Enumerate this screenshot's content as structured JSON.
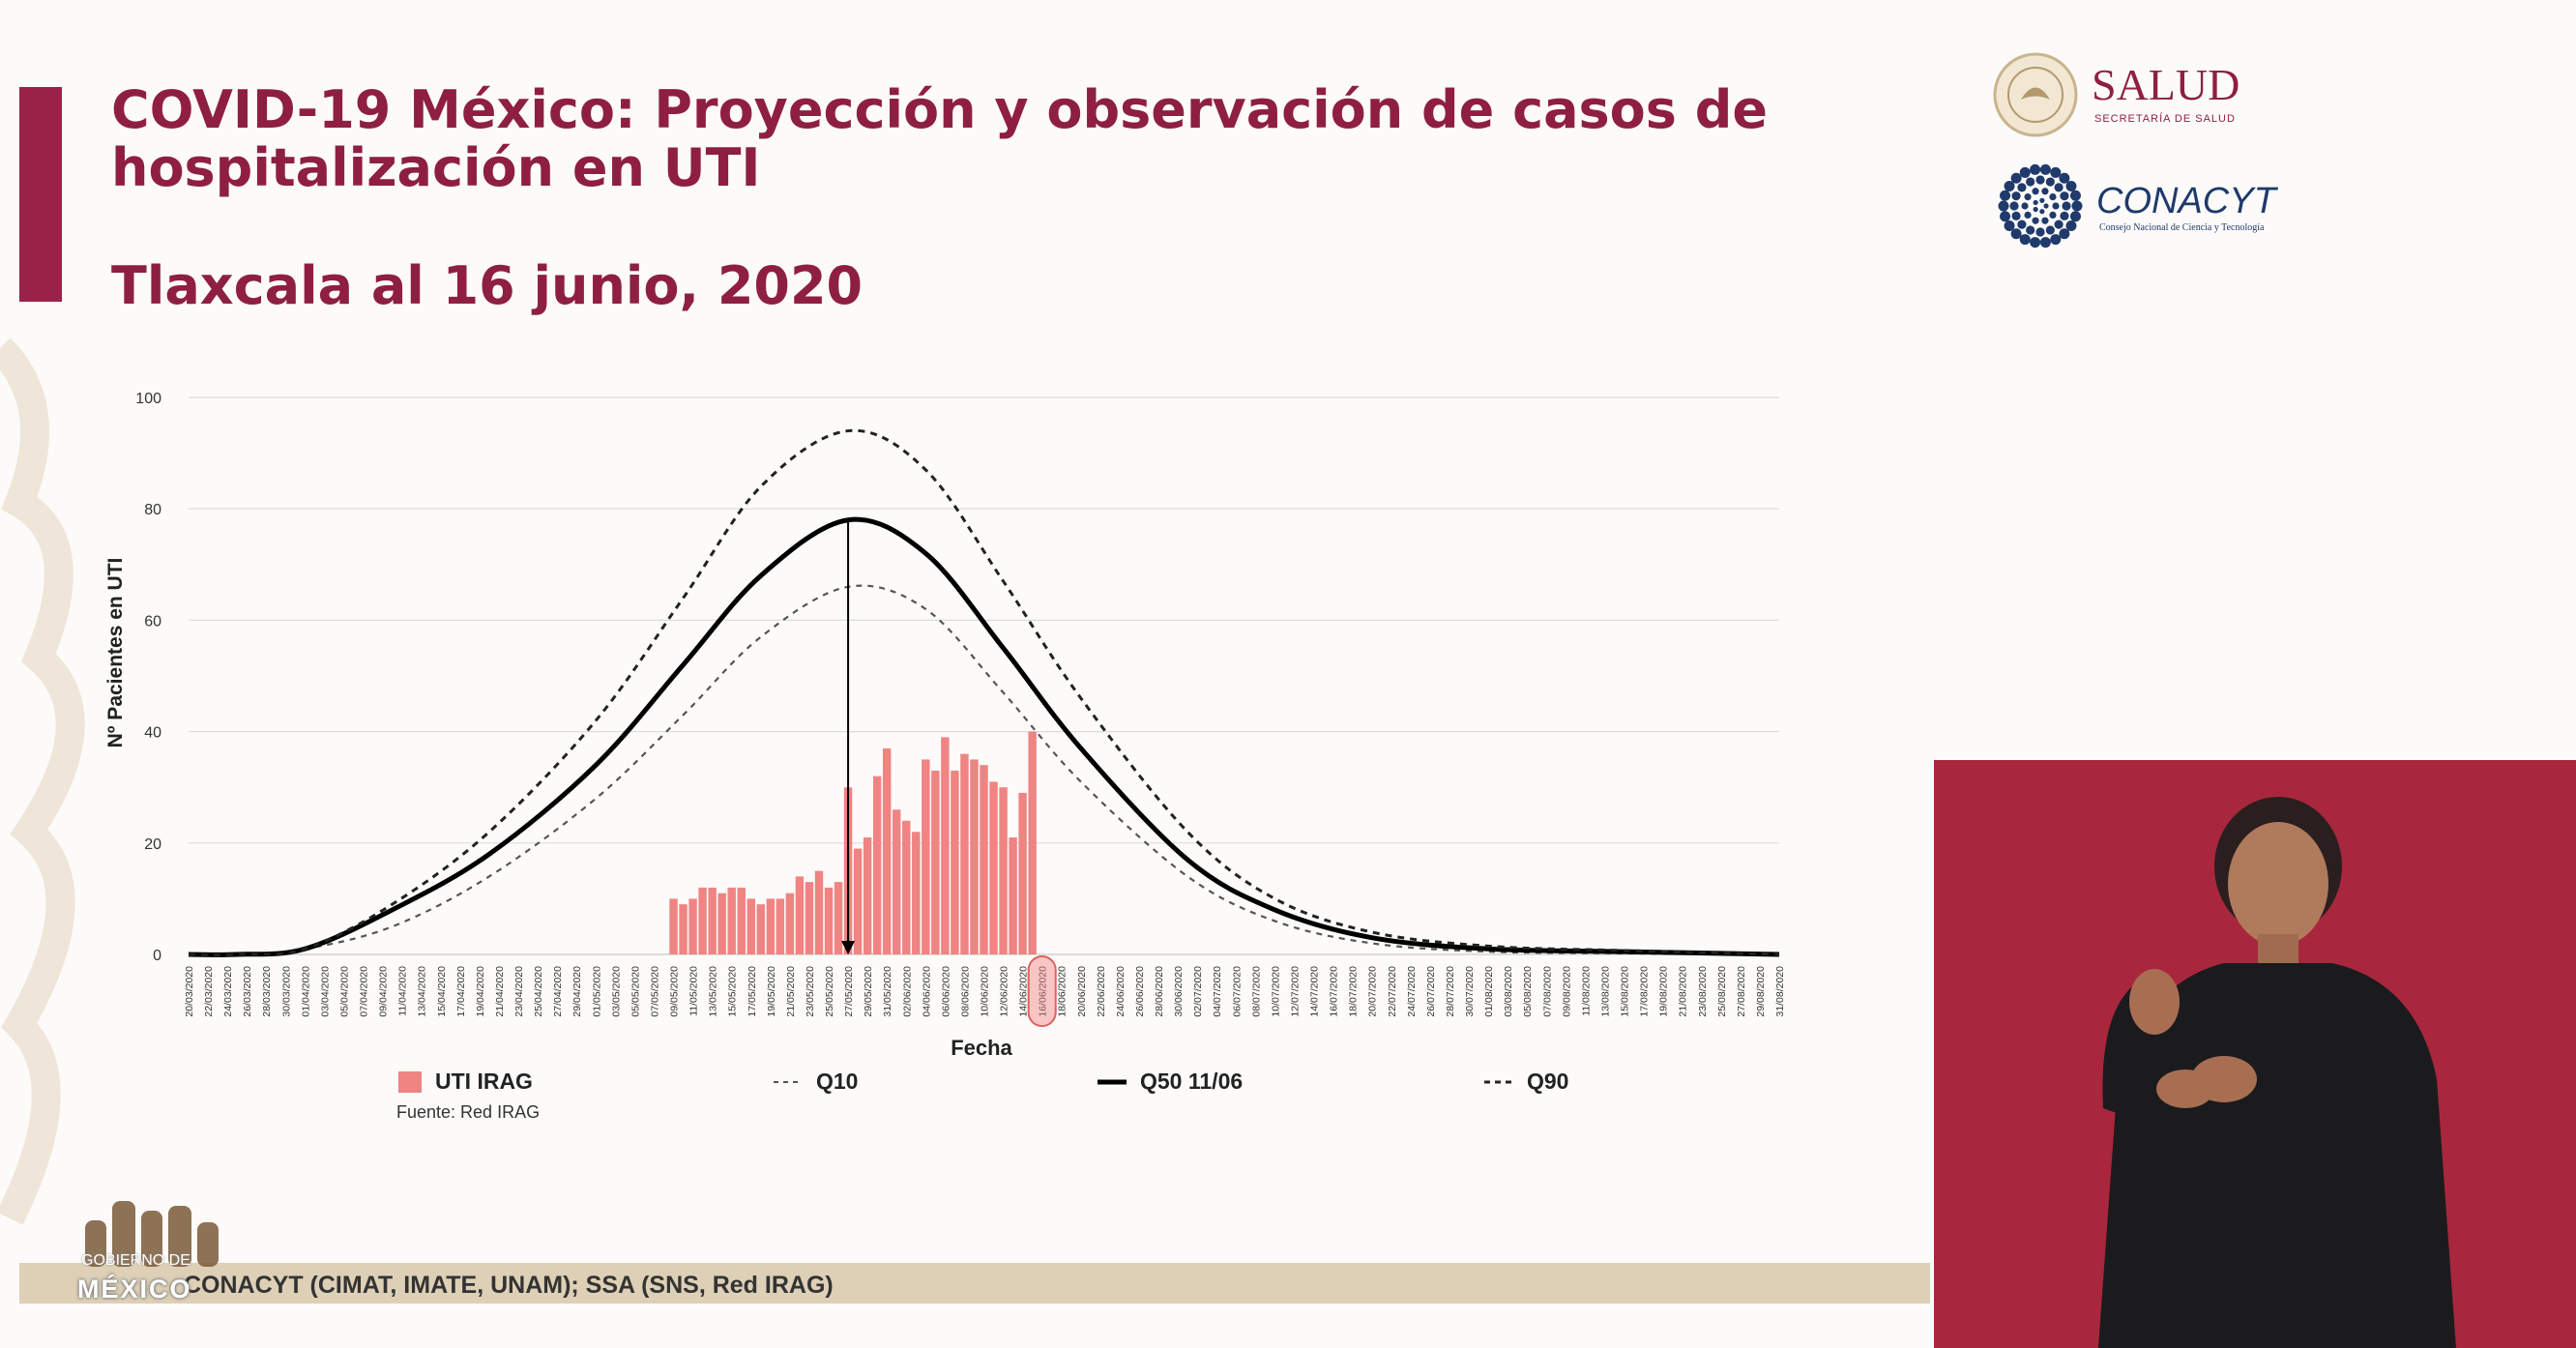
{
  "slide": {
    "title_line1": "COVID-19 México: Proyección y observación de casos de",
    "title_line2": "hospitalización en UTI",
    "subtitle": "Tlaxcala al 16 junio, 2020",
    "footer": "CONACYT (CIMAT, IMATE, UNAM);   SSA (SNS, Red IRAG)",
    "source_note": "Fuente: Red IRAG"
  },
  "logos": {
    "salud_name": "SALUD",
    "salud_sub": "SECRETARÍA DE SALUD",
    "conacyt_name": "CONACYT",
    "conacyt_sub": "Consejo Nacional de Ciencia y Tecnología",
    "gov_line1": "GOBIERNO DE",
    "gov_line2": "MÉXICO"
  },
  "legend": {
    "bars": "UTI IRAG",
    "q10": "Q10",
    "q50": "Q50 11/06",
    "q90": "Q90"
  },
  "colors": {
    "title": "#8e1f43",
    "accent_bar": "#9b2247",
    "bar_fill": "#ef8482",
    "curve": "#000000",
    "grid": "#dcdcdc",
    "footer_band": "#ddd0b6",
    "interpreter_bg": "#a8273d"
  },
  "chart_data": {
    "type": "bar",
    "title": "",
    "xlabel": "Fecha",
    "ylabel": "Nº Pacientes en UTI",
    "ylim": [
      0,
      100
    ],
    "yticks": [
      0,
      20,
      40,
      60,
      80,
      100
    ],
    "grid": true,
    "x_start": "20/03/2020",
    "x_end": "31/08/2020",
    "x_tick_labels": [
      "20/03/2020",
      "22/03/2020",
      "24/03/2020",
      "26/03/2020",
      "28/03/2020",
      "30/03/2020",
      "01/04/2020",
      "03/04/2020",
      "05/04/2020",
      "07/04/2020",
      "09/04/2020",
      "11/04/2020",
      "13/04/2020",
      "15/04/2020",
      "17/04/2020",
      "19/04/2020",
      "21/04/2020",
      "23/04/2020",
      "25/04/2020",
      "27/04/2020",
      "29/04/2020",
      "01/05/2020",
      "03/05/2020",
      "05/05/2020",
      "07/05/2020",
      "09/05/2020",
      "11/05/2020",
      "13/05/2020",
      "15/05/2020",
      "17/05/2020",
      "19/05/2020",
      "21/05/2020",
      "23/05/2020",
      "25/05/2020",
      "27/05/2020",
      "29/05/2020",
      "31/05/2020",
      "02/06/2020",
      "04/06/2020",
      "06/06/2020",
      "08/06/2020",
      "10/06/2020",
      "12/06/2020",
      "14/06/2020",
      "16/06/2020",
      "18/06/2020",
      "20/06/2020",
      "22/06/2020",
      "24/06/2020",
      "26/06/2020",
      "28/06/2020",
      "30/06/2020",
      "02/07/2020",
      "04/07/2020",
      "06/07/2020",
      "08/07/2020",
      "10/07/2020",
      "12/07/2020",
      "14/07/2020",
      "16/07/2020",
      "18/07/2020",
      "20/07/2020",
      "22/07/2020",
      "24/07/2020",
      "26/07/2020",
      "28/07/2020",
      "30/07/2020",
      "01/08/2020",
      "03/08/2020",
      "05/08/2020",
      "07/08/2020",
      "09/08/2020",
      "11/08/2020",
      "13/08/2020",
      "15/08/2020",
      "17/08/2020",
      "19/08/2020",
      "21/08/2020",
      "23/08/2020",
      "25/08/2020",
      "27/08/2020",
      "29/08/2020",
      "31/08/2020"
    ],
    "bars": {
      "name": "UTI IRAG",
      "start": "09/05/2020",
      "values": [
        10,
        9,
        10,
        12,
        12,
        11,
        12,
        12,
        10,
        9,
        10,
        10,
        11,
        14,
        13,
        15,
        12,
        13,
        30,
        19,
        21,
        32,
        37,
        26,
        24,
        22,
        35,
        33,
        39,
        33,
        36,
        35,
        34,
        31,
        30,
        21,
        29,
        40
      ]
    },
    "peak_marker": {
      "date": "27/05/2020",
      "value": 78
    },
    "highlight_date": "16/06/2020",
    "series": [
      {
        "name": "Q10",
        "style": "dashed-thin",
        "points": [
          [
            "20/03/2020",
            0
          ],
          [
            "25/03/2020",
            0
          ],
          [
            "01/04/2020",
            1
          ],
          [
            "10/04/2020",
            5
          ],
          [
            "20/04/2020",
            14
          ],
          [
            "01/05/2020",
            28
          ],
          [
            "10/05/2020",
            43
          ],
          [
            "18/05/2020",
            57
          ],
          [
            "27/05/2020",
            66
          ],
          [
            "04/06/2020",
            62
          ],
          [
            "12/06/2020",
            47
          ],
          [
            "20/06/2020",
            31
          ],
          [
            "01/07/2020",
            14
          ],
          [
            "10/07/2020",
            6
          ],
          [
            "20/07/2020",
            2
          ],
          [
            "01/08/2020",
            0.5
          ],
          [
            "15/08/2020",
            0.2
          ],
          [
            "31/08/2020",
            0
          ]
        ]
      },
      {
        "name": "Q50 11/06",
        "style": "solid-thick",
        "points": [
          [
            "20/03/2020",
            0
          ],
          [
            "25/03/2020",
            0
          ],
          [
            "01/04/2020",
            1
          ],
          [
            "10/04/2020",
            8
          ],
          [
            "20/04/2020",
            18
          ],
          [
            "01/05/2020",
            34
          ],
          [
            "10/05/2020",
            52
          ],
          [
            "18/05/2020",
            68
          ],
          [
            "27/05/2020",
            78
          ],
          [
            "04/06/2020",
            72
          ],
          [
            "12/06/2020",
            55
          ],
          [
            "20/06/2020",
            37
          ],
          [
            "01/07/2020",
            17
          ],
          [
            "10/07/2020",
            8
          ],
          [
            "20/07/2020",
            3
          ],
          [
            "01/08/2020",
            1
          ],
          [
            "15/08/2020",
            0.5
          ],
          [
            "31/08/2020",
            0
          ]
        ]
      },
      {
        "name": "Q90",
        "style": "dashed-medium",
        "points": [
          [
            "20/03/2020",
            0
          ],
          [
            "25/03/2020",
            0
          ],
          [
            "01/04/2020",
            1
          ],
          [
            "10/04/2020",
            9
          ],
          [
            "20/04/2020",
            22
          ],
          [
            "01/05/2020",
            42
          ],
          [
            "10/05/2020",
            64
          ],
          [
            "18/05/2020",
            84
          ],
          [
            "27/05/2020",
            94
          ],
          [
            "04/06/2020",
            87
          ],
          [
            "12/06/2020",
            67
          ],
          [
            "20/06/2020",
            46
          ],
          [
            "01/07/2020",
            22
          ],
          [
            "10/07/2020",
            10
          ],
          [
            "20/07/2020",
            4
          ],
          [
            "01/08/2020",
            1.5
          ],
          [
            "15/08/2020",
            0.7
          ],
          [
            "31/08/2020",
            0
          ]
        ]
      }
    ]
  }
}
